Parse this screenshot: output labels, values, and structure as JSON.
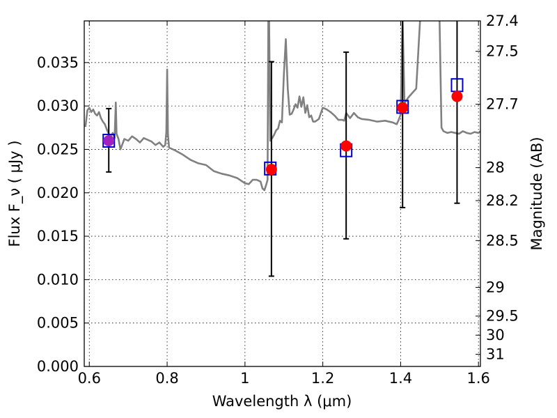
{
  "chart_data": {
    "type": "scatter",
    "xlabel": "Wavelength  λ (μm)",
    "ylabel": "Flux  F_ν  ( μJy )",
    "y2label": "Magnitude (AB)",
    "xlim": [
      0.587,
      1.605
    ],
    "ylim": [
      0.0,
      0.0398
    ],
    "grid": true,
    "x_ticks": [
      {
        "value": 0.6,
        "label": "0.6"
      },
      {
        "value": 0.8,
        "label": "0.8"
      },
      {
        "value": 1.0,
        "label": "1"
      },
      {
        "value": 1.2,
        "label": "1.2"
      },
      {
        "value": 1.4,
        "label": "1.4"
      },
      {
        "value": 1.6,
        "label": "1.6"
      }
    ],
    "y_ticks": [
      {
        "value": 0.0,
        "label": "0.000"
      },
      {
        "value": 0.005,
        "label": "0.005"
      },
      {
        "value": 0.01,
        "label": "0.010"
      },
      {
        "value": 0.015,
        "label": "0.015"
      },
      {
        "value": 0.02,
        "label": "0.020"
      },
      {
        "value": 0.025,
        "label": "0.025"
      },
      {
        "value": 0.03,
        "label": "0.030"
      },
      {
        "value": 0.035,
        "label": "0.035"
      }
    ],
    "y2_ticks": [
      {
        "flux": 0.0398,
        "label": "27.4"
      },
      {
        "flux": 0.0363,
        "label": "27.5"
      },
      {
        "flux": 0.0302,
        "label": "27.7"
      },
      {
        "flux": 0.0229,
        "label": "28"
      },
      {
        "flux": 0.0191,
        "label": "28.2"
      },
      {
        "flux": 0.0145,
        "label": "28.5"
      },
      {
        "flux": 0.0091,
        "label": "29"
      },
      {
        "flux": 0.0058,
        "label": "29.5"
      },
      {
        "flux": 0.0036,
        "label": "30"
      },
      {
        "flux": 0.0014,
        "label": "31"
      }
    ],
    "model_spectrum": {
      "color": "#808080",
      "x": [
        0.59,
        0.595,
        0.6,
        0.605,
        0.61,
        0.615,
        0.62,
        0.625,
        0.63,
        0.635,
        0.64,
        0.645,
        0.65,
        0.655,
        0.66,
        0.665,
        0.668,
        0.67,
        0.675,
        0.68,
        0.69,
        0.7,
        0.71,
        0.72,
        0.73,
        0.74,
        0.75,
        0.76,
        0.77,
        0.78,
        0.79,
        0.795,
        0.798,
        0.8,
        0.802,
        0.805,
        0.81,
        0.82,
        0.84,
        0.86,
        0.88,
        0.9,
        0.92,
        0.94,
        0.96,
        0.98,
        1.0,
        1.01,
        1.02,
        1.03,
        1.04,
        1.045,
        1.05,
        1.055,
        1.058,
        1.06,
        1.062,
        1.065,
        1.07,
        1.075,
        1.08,
        1.085,
        1.09,
        1.095,
        1.1,
        1.105,
        1.11,
        1.115,
        1.12,
        1.125,
        1.13,
        1.135,
        1.14,
        1.145,
        1.15,
        1.155,
        1.16,
        1.165,
        1.17,
        1.175,
        1.18,
        1.19,
        1.2,
        1.21,
        1.22,
        1.23,
        1.24,
        1.25,
        1.255,
        1.26,
        1.27,
        1.28,
        1.29,
        1.3,
        1.32,
        1.34,
        1.36,
        1.38,
        1.39,
        1.395,
        1.4,
        1.405,
        1.41,
        1.42,
        1.43,
        1.44,
        1.45,
        1.46,
        1.47,
        1.48,
        1.49,
        1.5,
        1.505,
        1.51,
        1.52,
        1.53,
        1.54,
        1.55,
        1.56,
        1.57,
        1.58,
        1.59,
        1.6,
        1.605
      ],
      "y": [
        0.0276,
        0.0295,
        0.0298,
        0.0293,
        0.0296,
        0.0291,
        0.0289,
        0.0293,
        0.0286,
        0.0282,
        0.0279,
        0.0273,
        0.0268,
        0.0264,
        0.0269,
        0.0263,
        0.0304,
        0.0268,
        0.0262,
        0.025,
        0.0262,
        0.026,
        0.0265,
        0.0262,
        0.0258,
        0.0263,
        0.0261,
        0.0259,
        0.0255,
        0.0258,
        0.0253,
        0.0255,
        0.027,
        0.0342,
        0.0268,
        0.0252,
        0.0251,
        0.0249,
        0.0244,
        0.0238,
        0.0234,
        0.0232,
        0.0225,
        0.0222,
        0.022,
        0.0217,
        0.0211,
        0.021,
        0.0215,
        0.0215,
        0.0213,
        0.0205,
        0.0203,
        0.021,
        0.0215,
        0.04,
        0.04,
        0.026,
        0.0263,
        0.0267,
        0.0272,
        0.0274,
        0.0283,
        0.0281,
        0.0336,
        0.0377,
        0.032,
        0.029,
        0.0291,
        0.0296,
        0.0302,
        0.0298,
        0.0311,
        0.0299,
        0.031,
        0.0292,
        0.0301,
        0.0287,
        0.0289,
        0.0282,
        0.0282,
        0.0285,
        0.0298,
        0.0296,
        0.0293,
        0.0289,
        0.0284,
        0.0284,
        0.0283,
        0.0292,
        0.0286,
        0.0292,
        0.0287,
        0.0285,
        0.0284,
        0.0282,
        0.0283,
        0.0281,
        0.0279,
        0.0284,
        0.029,
        0.04,
        0.0303,
        0.031,
        0.0315,
        0.032,
        0.04,
        0.04,
        0.04,
        0.04,
        0.04,
        0.04,
        0.0275,
        0.0271,
        0.0269,
        0.027,
        0.0269,
        0.0268,
        0.0271,
        0.0269,
        0.0268,
        0.027,
        0.0269,
        0.0271
      ]
    },
    "predicted_model_fluxes": {
      "marker": "open square",
      "color": "#0000cc",
      "x": [
        0.65,
        1.065,
        1.26,
        1.405,
        1.545
      ],
      "y": [
        0.026,
        0.0228,
        0.0249,
        0.0299,
        0.0324
      ]
    },
    "observed_fluxes": {
      "marker": "filled circle",
      "color": "#ff0000",
      "x": [
        0.65,
        1.068,
        1.26,
        1.405,
        1.545
      ],
      "y": [
        0.026,
        0.0227,
        0.0254,
        0.0298,
        0.0311
      ],
      "yerr_low": [
        0.0224,
        0.0104,
        0.0147,
        0.0183,
        0.0188
      ],
      "yerr_high": [
        0.0297,
        0.0351,
        0.0362,
        0.0405,
        0.0405
      ],
      "point_colors": [
        "#a020c0",
        "#ff0000",
        "#ff0000",
        "#ff0000",
        "#ff0000"
      ]
    }
  }
}
